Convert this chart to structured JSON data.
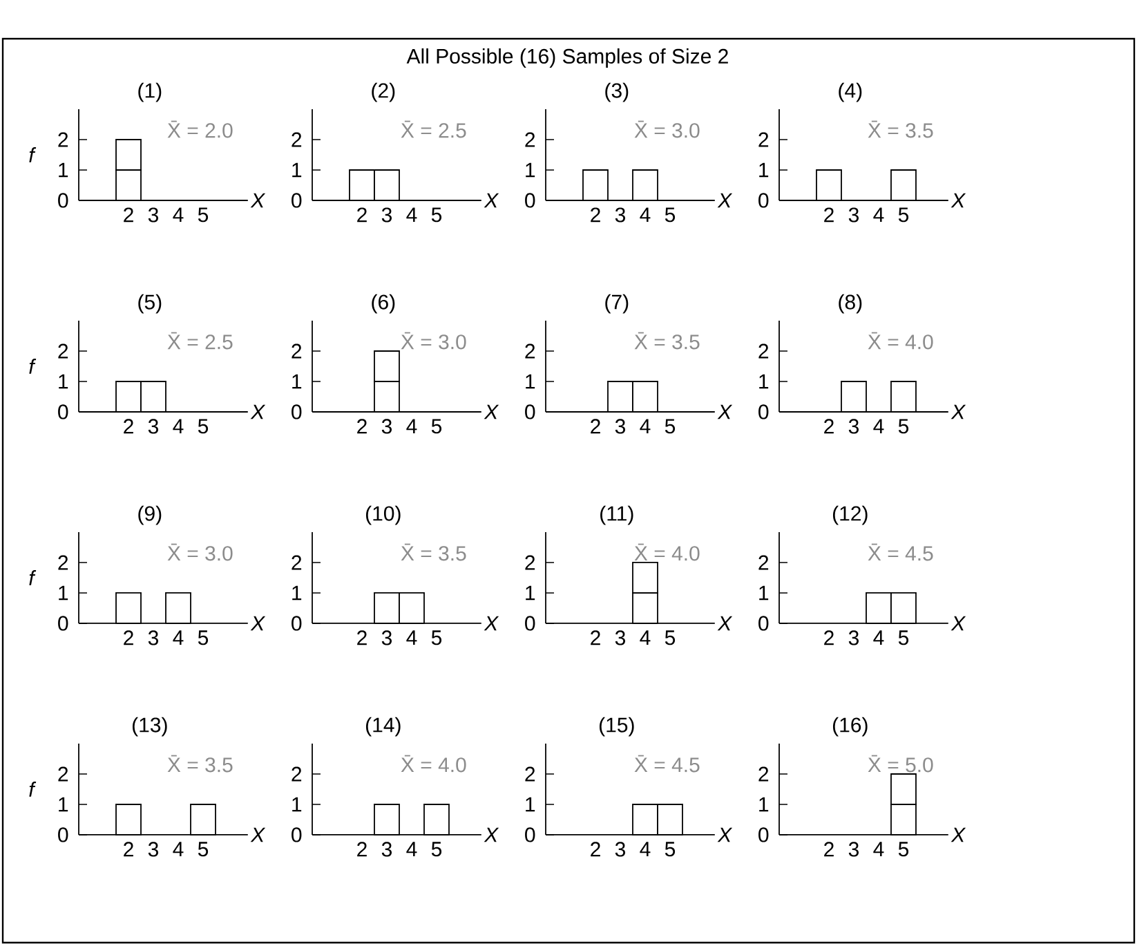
{
  "chart_data": [
    {
      "type": "bar",
      "title": "(1)",
      "categories": [
        "2",
        "3",
        "4",
        "5"
      ],
      "xlabel": "X",
      "ylabel": "f",
      "ylim": [
        0,
        3
      ],
      "yticks": [
        0,
        1,
        2
      ],
      "stacked": true,
      "annotations": [
        "X̄ = 2.0",
        "All Possible (16) Samples of Size 2"
      ],
      "series": [
        {
          "color": "#ffffff",
          "values": [
            1,
            null,
            null,
            null
          ]
        },
        {
          "color": "#ffffff",
          "values": [
            1,
            null,
            null,
            null
          ]
        }
      ]
    },
    {
      "type": "bar",
      "title": "(2)",
      "categories": [
        "2",
        "3",
        "4",
        "5"
      ],
      "xlabel": "X",
      "ylim": [
        0,
        3
      ],
      "yticks": [
        0,
        1,
        2
      ],
      "stacked": true,
      "annotations": [
        "X̄ = 2.5"
      ],
      "series": [
        {
          "color": "#ffffff",
          "values": [
            1,
            1,
            null,
            null
          ]
        }
      ]
    },
    {
      "type": "bar",
      "title": "(3)",
      "categories": [
        "2",
        "3",
        "4",
        "5"
      ],
      "xlabel": "X",
      "ylim": [
        0,
        3
      ],
      "yticks": [
        0,
        1,
        2
      ],
      "stacked": true,
      "annotations": [
        "X̄ = 3.0"
      ],
      "series": [
        {
          "color": "#ffffff",
          "values": [
            1,
            null,
            1,
            null
          ]
        }
      ]
    },
    {
      "type": "bar",
      "title": "(4)",
      "categories": [
        "2",
        "3",
        "4",
        "5"
      ],
      "xlabel": "X",
      "ylim": [
        0,
        3
      ],
      "yticks": [
        0,
        1,
        2
      ],
      "stacked": true,
      "annotations": [
        "X̄ = 3.5"
      ],
      "series": [
        {
          "color": "#ffffff",
          "values": [
            1,
            null,
            null,
            1
          ]
        }
      ]
    },
    {
      "type": "bar",
      "title": "(5)",
      "categories": [
        "2",
        "3",
        "4",
        "5"
      ],
      "xlabel": "X",
      "ylabel": "f",
      "ylim": [
        0,
        3
      ],
      "yticks": [
        0,
        1,
        2
      ],
      "stacked": true,
      "annotations": [
        "X̄ = 2.5"
      ],
      "series": [
        {
          "color": "#ffffff",
          "values": [
            1,
            1,
            null,
            null
          ]
        }
      ]
    },
    {
      "type": "bar",
      "title": "(6)",
      "categories": [
        "2",
        "3",
        "4",
        "5"
      ],
      "xlabel": "X",
      "ylim": [
        0,
        3
      ],
      "yticks": [
        0,
        1,
        2
      ],
      "stacked": true,
      "annotations": [
        "X̄ = 3.0"
      ],
      "series": [
        {
          "color": "#ffffff",
          "values": [
            null,
            1,
            null,
            null
          ]
        },
        {
          "color": "#ffffff",
          "values": [
            null,
            1,
            null,
            null
          ]
        }
      ]
    },
    {
      "type": "bar",
      "title": "(7)",
      "categories": [
        "2",
        "3",
        "4",
        "5"
      ],
      "xlabel": "X",
      "ylim": [
        0,
        3
      ],
      "yticks": [
        0,
        1,
        2
      ],
      "stacked": true,
      "annotations": [
        "X̄ = 3.5"
      ],
      "series": [
        {
          "color": "#ffffff",
          "values": [
            null,
            1,
            1,
            null
          ]
        }
      ]
    },
    {
      "type": "bar",
      "title": "(8)",
      "categories": [
        "2",
        "3",
        "4",
        "5"
      ],
      "xlabel": "X",
      "ylim": [
        0,
        3
      ],
      "yticks": [
        0,
        1,
        2
      ],
      "stacked": true,
      "annotations": [
        "X̄ = 4.0"
      ],
      "series": [
        {
          "color": "#ffffff",
          "values": [
            null,
            1,
            null,
            1
          ]
        }
      ]
    },
    {
      "type": "bar",
      "title": "(9)",
      "categories": [
        "2",
        "3",
        "4",
        "5"
      ],
      "xlabel": "X",
      "ylabel": "f",
      "ylim": [
        0,
        3
      ],
      "yticks": [
        0,
        1,
        2
      ],
      "stacked": true,
      "annotations": [
        "X̄ = 3.0"
      ],
      "series": [
        {
          "color": "#ffffff",
          "values": [
            1,
            null,
            1,
            null
          ]
        }
      ]
    },
    {
      "type": "bar",
      "title": "(10)",
      "categories": [
        "2",
        "3",
        "4",
        "5"
      ],
      "xlabel": "X",
      "ylim": [
        0,
        3
      ],
      "yticks": [
        0,
        1,
        2
      ],
      "stacked": true,
      "annotations": [
        "X̄ = 3.5"
      ],
      "series": [
        {
          "color": "#ffffff",
          "values": [
            null,
            1,
            1,
            null
          ]
        }
      ]
    },
    {
      "type": "bar",
      "title": "(11)",
      "categories": [
        "2",
        "3",
        "4",
        "5"
      ],
      "xlabel": "X",
      "ylim": [
        0,
        3
      ],
      "yticks": [
        0,
        1,
        2
      ],
      "stacked": true,
      "annotations": [
        "X̄ = 4.0"
      ],
      "series": [
        {
          "color": "#ffffff",
          "values": [
            null,
            null,
            1,
            null
          ]
        },
        {
          "color": "#ffffff",
          "values": [
            null,
            null,
            1,
            null
          ]
        }
      ]
    },
    {
      "type": "bar",
      "title": "(12)",
      "categories": [
        "2",
        "3",
        "4",
        "5"
      ],
      "xlabel": "X",
      "ylim": [
        0,
        3
      ],
      "yticks": [
        0,
        1,
        2
      ],
      "stacked": true,
      "annotations": [
        "X̄ = 4.5"
      ],
      "series": [
        {
          "color": "#ffffff",
          "values": [
            null,
            null,
            1,
            1
          ]
        }
      ]
    },
    {
      "type": "bar",
      "title": "(13)",
      "categories": [
        "2",
        "3",
        "4",
        "5"
      ],
      "xlabel": "X",
      "ylabel": "f",
      "ylim": [
        0,
        3
      ],
      "yticks": [
        0,
        1,
        2
      ],
      "stacked": true,
      "annotations": [
        "X̄ = 3.5"
      ],
      "series": [
        {
          "color": "#ffffff",
          "values": [
            1,
            null,
            null,
            1
          ]
        }
      ]
    },
    {
      "type": "bar",
      "title": "(14)",
      "categories": [
        "2",
        "3",
        "4",
        "5"
      ],
      "xlabel": "X",
      "ylim": [
        0,
        3
      ],
      "yticks": [
        0,
        1,
        2
      ],
      "stacked": true,
      "annotations": [
        "X̄ = 4.0"
      ],
      "series": [
        {
          "color": "#ffffff",
          "values": [
            null,
            1,
            null,
            1
          ]
        }
      ]
    },
    {
      "type": "bar",
      "title": "(15)",
      "categories": [
        "2",
        "3",
        "4",
        "5"
      ],
      "xlabel": "X",
      "ylim": [
        0,
        3
      ],
      "yticks": [
        0,
        1,
        2
      ],
      "stacked": true,
      "annotations": [
        "X̄ = 4.5"
      ],
      "series": [
        {
          "color": "#ffffff",
          "values": [
            null,
            null,
            1,
            1
          ]
        }
      ]
    },
    {
      "type": "bar",
      "title": "(16)",
      "categories": [
        "2",
        "3",
        "4",
        "5"
      ],
      "xlabel": "X",
      "ylim": [
        0,
        3
      ],
      "yticks": [
        0,
        1,
        2
      ],
      "stacked": true,
      "annotations": [
        "X̄ = 5.0"
      ],
      "series": [
        {
          "color": "#ffffff",
          "values": [
            null,
            null,
            null,
            1
          ]
        },
        {
          "color": "#ffffff",
          "values": [
            null,
            null,
            null,
            1
          ]
        }
      ]
    }
  ]
}
